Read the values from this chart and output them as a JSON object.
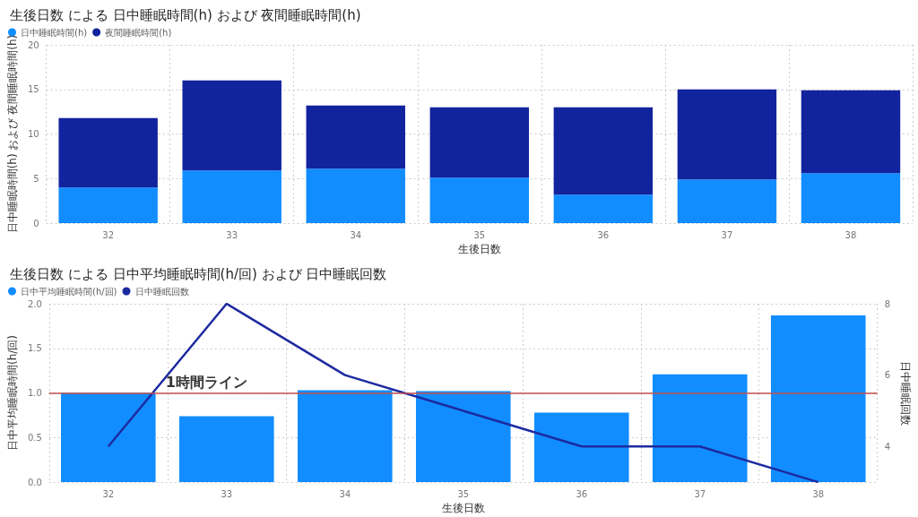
{
  "chart_data": [
    {
      "type": "bar",
      "title": "生後日数 による 日中睡眠時間(h) および 夜間睡眠時間(h)",
      "xlabel": "生後日数",
      "ylabel": "日中睡眠時間(h) および 夜間睡眠時間(h)",
      "categories": [
        "32",
        "33",
        "34",
        "35",
        "36",
        "37",
        "38"
      ],
      "stacked": true,
      "series": [
        {
          "name": "日中睡眠時間(h)",
          "color": "#118dff",
          "values": [
            4.0,
            5.9,
            6.1,
            5.1,
            3.2,
            4.9,
            5.6
          ]
        },
        {
          "name": "夜間睡眠時間(h)",
          "color": "#12239e",
          "values": [
            7.8,
            10.1,
            7.1,
            7.9,
            9.8,
            10.1,
            9.3
          ]
        }
      ],
      "ylim": [
        0,
        20
      ],
      "yticks": [
        0,
        5,
        10,
        15,
        20
      ],
      "grid": true,
      "legend": "top left"
    },
    {
      "type": "bar",
      "title": "生後日数 による 日中平均睡眠時間(h/回) および 日中睡眠回数",
      "xlabel": "生後日数",
      "ylabel": "日中平均睡眠時間(h/回)",
      "y2label": "日中睡眠回数",
      "categories": [
        "32",
        "33",
        "34",
        "35",
        "36",
        "37",
        "38"
      ],
      "series": [
        {
          "name": "日中平均睡眠時間(h/回)",
          "color": "#118dff",
          "values": [
            1.0,
            0.74,
            1.03,
            1.02,
            0.78,
            1.21,
            1.87
          ]
        },
        {
          "name": "日中睡眠回数",
          "type": "line",
          "axis": "y2",
          "color": "#1c2aa0",
          "values": [
            4,
            8,
            6,
            5,
            4,
            4,
            3
          ]
        }
      ],
      "ylim": [
        0,
        2.0
      ],
      "yticks": [
        {
          "value": 0,
          "label": "0.0"
        },
        0.5,
        {
          "value": 1,
          "label": "1.0"
        },
        1.5,
        {
          "value": 2,
          "label": "2.0"
        }
      ],
      "y2lim": [
        3,
        8
      ],
      "y2ticks": [
        4,
        6,
        8
      ],
      "ref_lines": [
        {
          "axis": "y",
          "value": 1.0,
          "label": "1時間ライン",
          "color": "#c0504d"
        }
      ],
      "grid": true,
      "legend": "top left",
      "marker": "none"
    }
  ]
}
